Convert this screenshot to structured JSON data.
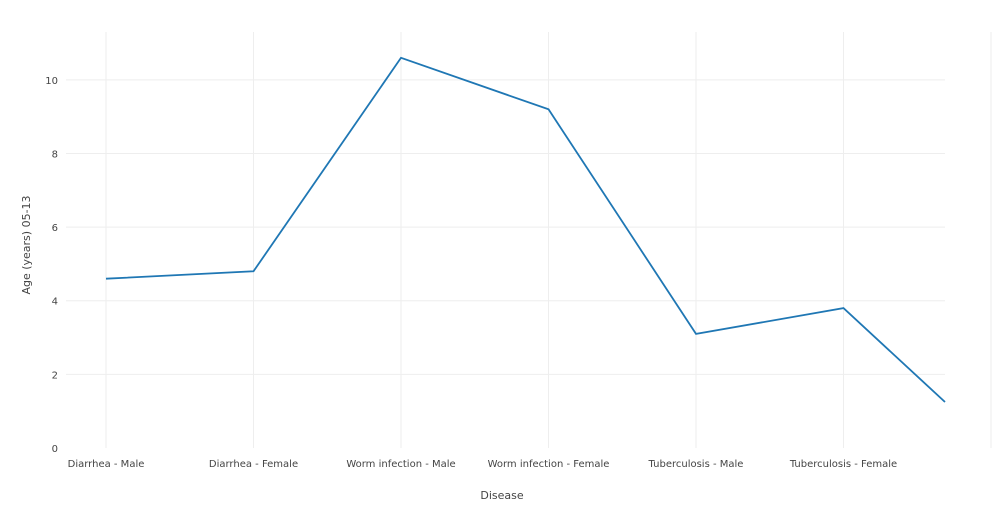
{
  "chart_data": {
    "type": "line",
    "title": "",
    "xlabel": "Disease",
    "ylabel": "Age (years) 05-13",
    "categories": [
      "Diarrhea - Male",
      "Diarrhea - Female",
      "Worm infection - Male",
      "Worm infection - Female",
      "Tuberculosis - Male",
      "Tuberculosis - Female",
      ""
    ],
    "series": [
      {
        "values": [
          4.6,
          4.8,
          10.6,
          9.2,
          3.1,
          3.8,
          1.25
        ]
      }
    ],
    "ylim": [
      0,
      11.3
    ],
    "yticks": [
      0,
      2,
      4,
      6,
      8,
      10
    ],
    "grid": true,
    "legend": "none",
    "line_color": "#1f77b4",
    "grid_color": "#eeeeee"
  }
}
